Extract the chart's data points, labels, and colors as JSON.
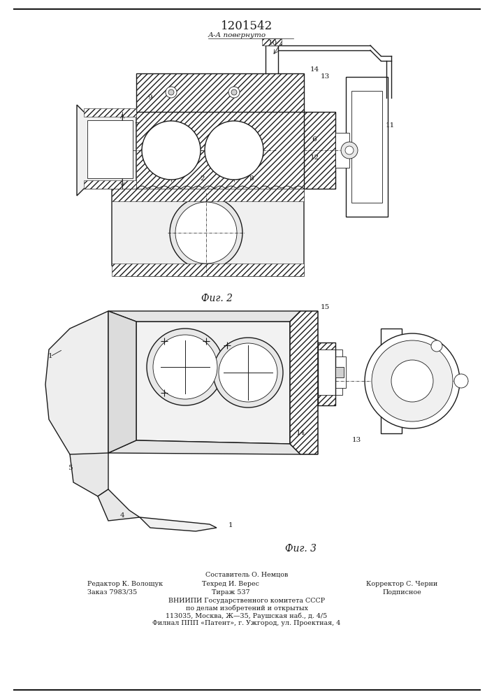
{
  "patent_number": "1201542",
  "fig2_label": "Фиг. 2",
  "fig3_label": "Фиг. 3",
  "section_label": "А-А повернуто",
  "line_color": "#1a1a1a",
  "footer_line1": "Составитель О. Немцов",
  "footer_col1_line1": "Редактор К. Волощук",
  "footer_col1_line2": "Заказ 7983/35",
  "footer_col2_line1": "Техред И. Верес",
  "footer_col2_line2": "Тираж 537",
  "footer_col3_line1": "Корректор С. Черни",
  "footer_col3_line2": "Подписное",
  "footer_vniip1": "ВНИИПИ Государственного комитета СССР",
  "footer_vniip2": "по делам изобретений и открытых",
  "footer_vniip3": "113035, Москва, Ж—35, Раушская наб., д. 4/5",
  "footer_vniip4": "Филнал ППП «Патент», г. Ужгород, ул. Проектная, 4"
}
